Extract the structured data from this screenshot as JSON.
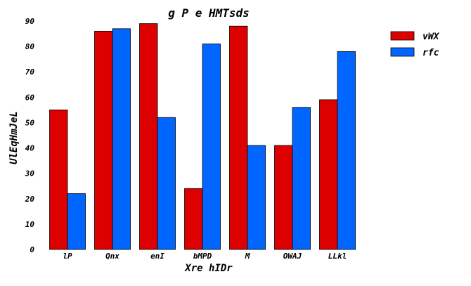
{
  "chart_data": {
    "type": "bar",
    "title": "g P e HMTsds",
    "xlabel": "Xre hIDr",
    "ylabel": "UlEqHmJeL",
    "categories": [
      "lP",
      "Qnx",
      "enI",
      "bMPD",
      "M",
      "OWAJ",
      "LLkl"
    ],
    "series": [
      {
        "name": "vWX",
        "color": "#dd0000",
        "values": [
          55,
          86,
          89,
          24,
          88,
          41,
          59
        ]
      },
      {
        "name": "rfc",
        "color": "#0066ff",
        "values": [
          22,
          87,
          52,
          81,
          41,
          56,
          78
        ]
      }
    ],
    "ylim": [
      0,
      90
    ],
    "yticks": [
      0,
      10,
      20,
      30,
      40,
      50,
      60,
      70,
      80,
      90
    ],
    "grid": false,
    "legend_position": "top-right"
  }
}
